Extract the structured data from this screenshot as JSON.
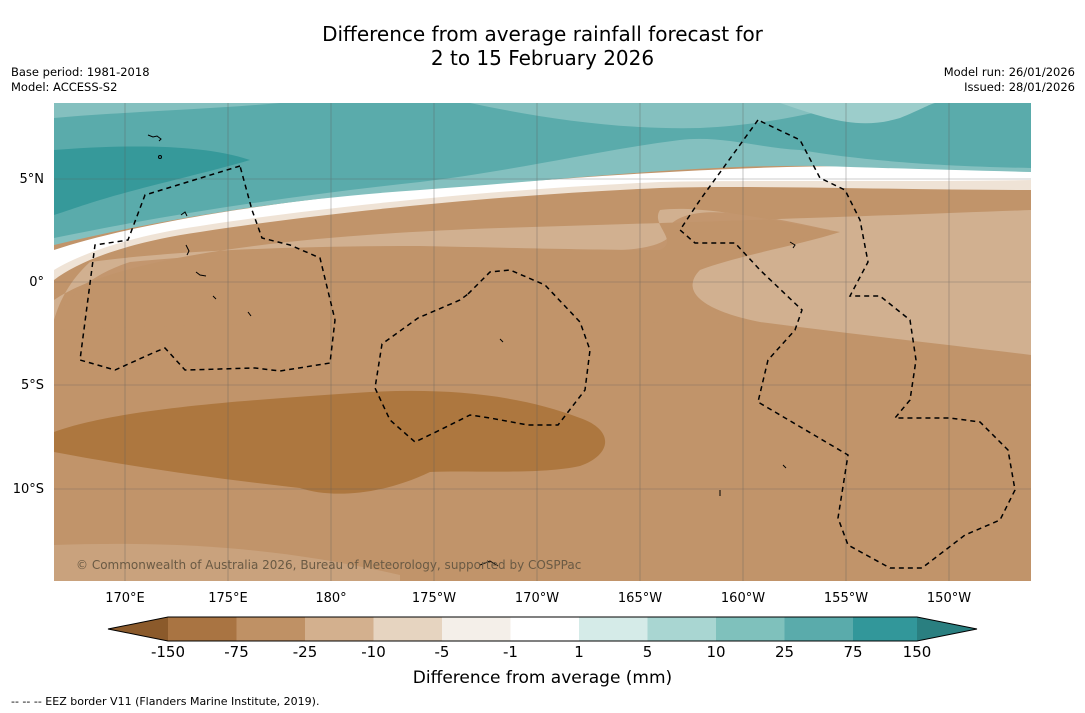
{
  "title_line1": "Difference from average rainfall forecast for",
  "title_line2": "2 to 15 February 2026",
  "base_period": "Base period: 1981-2018",
  "model": "Model: ACCESS-S2",
  "model_run": "Model run: 26/01/2026",
  "issued": "Issued: 28/01/2026",
  "copyright": "© Commonwealth of Australia 2026, Bureau of Meteorology, supported by COSPPac",
  "legend_note": "--  --  -- EEZ border V11 (Flanders Marine Institute, 2019).",
  "lat_labels": [
    "5°N",
    "0°",
    "5°S",
    "10°S"
  ],
  "lon_labels": [
    "170°E",
    "175°E",
    "180°",
    "175°W",
    "170°W",
    "165°W",
    "160°W",
    "155°W",
    "150°W"
  ],
  "colorbar": {
    "title": "Difference from average (mm)",
    "ticks": [
      "-150",
      "-75",
      "-25",
      "-10",
      "-5",
      "-1",
      "1",
      "5",
      "10",
      "25",
      "75",
      "150"
    ],
    "colors": [
      "#8b5a2b",
      "#a97442",
      "#bf9165",
      "#d3b08e",
      "#e6d4c0",
      "#f4efe9",
      "#ffffff",
      "#d5ebe8",
      "#a9d6d2",
      "#7fc1bc",
      "#5aabab",
      "#32979a",
      "#2a7f80"
    ]
  },
  "colors": {
    "land_brown_dark": "#ad773f",
    "land_brown_mid": "#c1946a",
    "land_brown_light": "#d1b090",
    "teal_dark": "#36999a",
    "teal_mid": "#5aabab",
    "teal_light": "#84c0bf"
  }
}
